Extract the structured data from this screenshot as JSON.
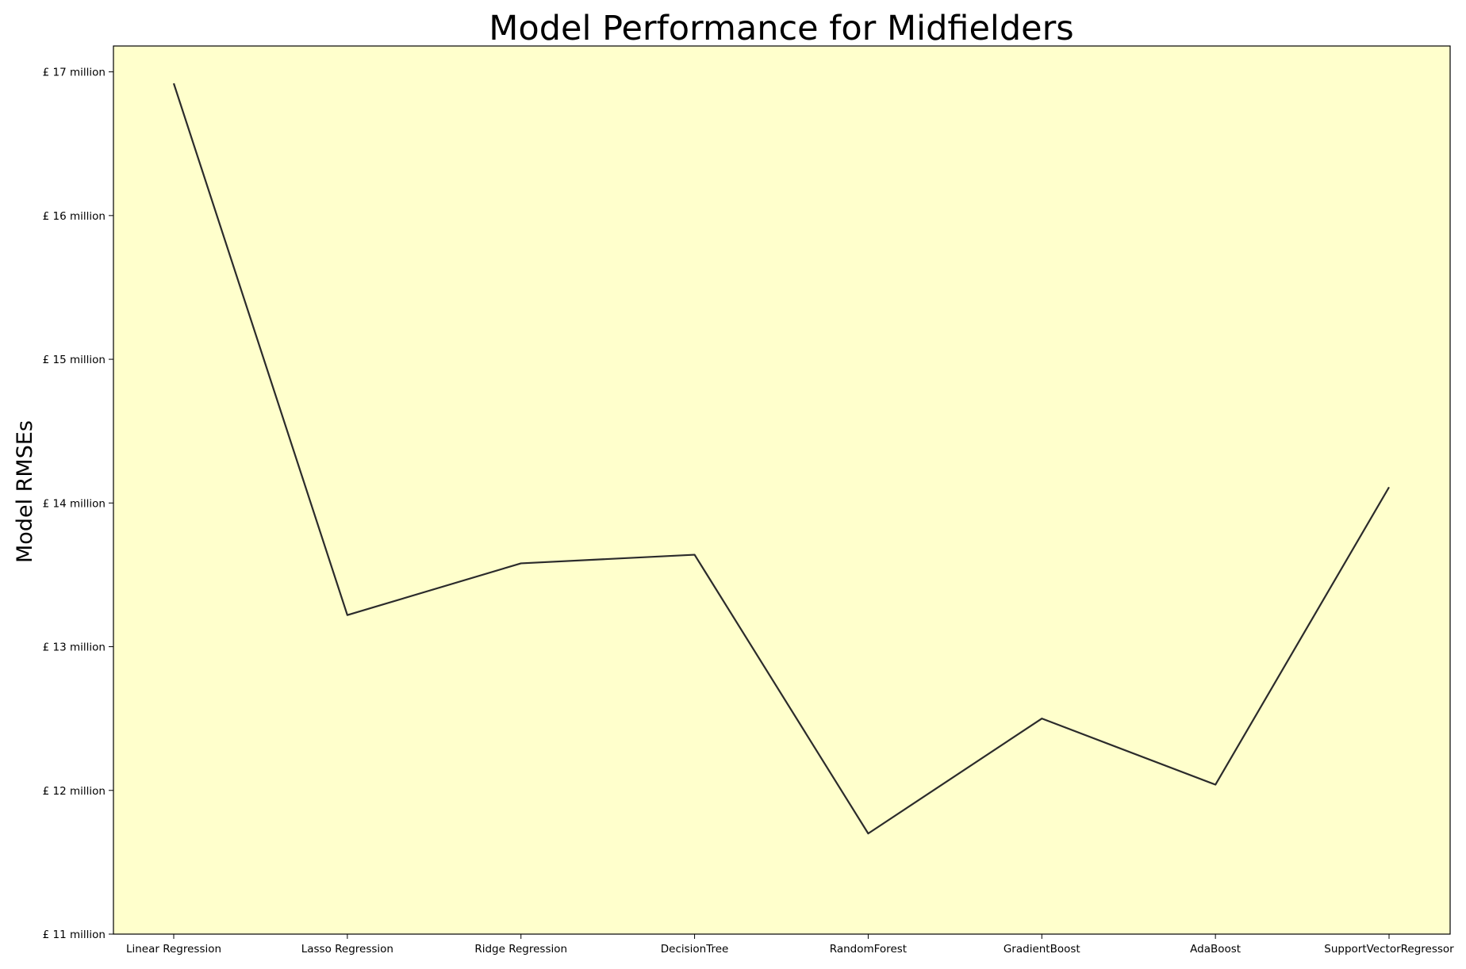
{
  "chart_data": {
    "type": "line",
    "title": "Model Performance for Midfielders",
    "xlabel": "",
    "ylabel": "Model RMSEs",
    "categories": [
      "Linear Regression",
      "Lasso Regression",
      "Ridge Regression",
      "DecisionTree",
      "RandomForest",
      "GradientBoost",
      "AdaBoost",
      "SupportVectorRegressor"
    ],
    "values": [
      16.92,
      13.22,
      13.58,
      13.64,
      11.7,
      12.5,
      12.04,
      14.11
    ],
    "value_unit": "£ million",
    "ylim": [
      11,
      17.18
    ],
    "yticks": [
      11,
      12,
      13,
      14,
      15,
      16,
      17
    ],
    "ytick_labels": [
      "£ 11 million",
      "£ 12 million",
      "£ 13 million",
      "£ 14 million",
      "£ 15 million",
      "£ 16 million",
      "£ 17 million"
    ],
    "grid": false,
    "legend": "none",
    "colors": {
      "plot_background": "#ffffcc",
      "line": "#2b2b2b",
      "axes": "#000000"
    }
  }
}
